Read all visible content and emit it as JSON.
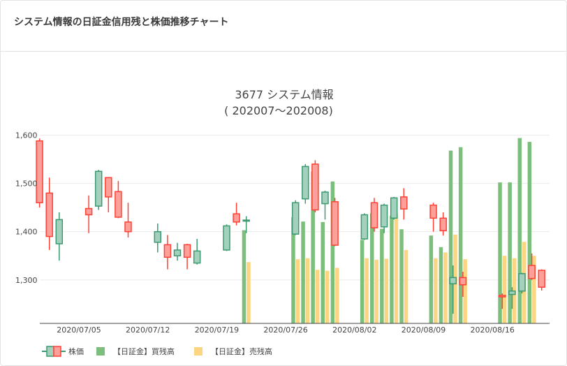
{
  "header": {
    "title": "システム情報の日証金信用残と株価推移チャート"
  },
  "chart_data": {
    "type": "candlestick+bar",
    "title": "3677 システム情報",
    "subtitle": "( 202007〜202008)",
    "ylim": [
      1210,
      1605
    ],
    "yticks": [
      {
        "v": 1300,
        "label": "1,300"
      },
      {
        "v": 1400,
        "label": "1,400"
      },
      {
        "v": 1500,
        "label": "1,500"
      },
      {
        "v": 1600,
        "label": "1,600"
      }
    ],
    "xticks": [
      {
        "label": "2020/07/05",
        "day": 0
      },
      {
        "label": "2020/07/12",
        "day": 7
      },
      {
        "label": "2020/07/19",
        "day": 14
      },
      {
        "label": "2020/07/26",
        "day": 21
      },
      {
        "label": "2020/08/02",
        "day": 28
      },
      {
        "label": "2020/08/09",
        "day": 35
      },
      {
        "label": "2020/08/16",
        "day": 42
      }
    ],
    "legend": {
      "position": "bottom-left",
      "items": [
        {
          "label": "株価",
          "kind": "candle"
        },
        {
          "label": "【日証金】買残高",
          "kind": "bar",
          "color": "#7cbf7c"
        },
        {
          "label": "【日証金】売残高",
          "kind": "bar",
          "color": "#fbd581"
        }
      ]
    },
    "colors": {
      "up": "#3d9970",
      "up_fill": "#a3d1bd",
      "down": "#ff4136",
      "down_fill": "#ff9f9a",
      "buy": "#7cbf7c",
      "sell": "#fbd581"
    },
    "candles": [
      {
        "date": "2020/07/01",
        "open": 1588,
        "high": 1593,
        "low": 1450,
        "close": 1460
      },
      {
        "date": "2020/07/02",
        "open": 1480,
        "high": 1512,
        "low": 1362,
        "close": 1390
      },
      {
        "date": "2020/07/03",
        "open": 1375,
        "high": 1440,
        "low": 1340,
        "close": 1425
      },
      {
        "date": "2020/07/06",
        "open": 1448,
        "high": 1475,
        "low": 1397,
        "close": 1435
      },
      {
        "date": "2020/07/07",
        "open": 1453,
        "high": 1528,
        "low": 1445,
        "close": 1525
      },
      {
        "date": "2020/07/08",
        "open": 1512,
        "high": 1512,
        "low": 1440,
        "close": 1472
      },
      {
        "date": "2020/07/09",
        "open": 1483,
        "high": 1505,
        "low": 1428,
        "close": 1430
      },
      {
        "date": "2020/07/10",
        "open": 1420,
        "high": 1460,
        "low": 1388,
        "close": 1400
      },
      {
        "date": "2020/07/13",
        "open": 1378,
        "high": 1417,
        "low": 1357,
        "close": 1400
      },
      {
        "date": "2020/07/14",
        "open": 1373,
        "high": 1393,
        "low": 1322,
        "close": 1347
      },
      {
        "date": "2020/07/15",
        "open": 1350,
        "high": 1377,
        "low": 1340,
        "close": 1362
      },
      {
        "date": "2020/07/16",
        "open": 1373,
        "high": 1375,
        "low": 1322,
        "close": 1347
      },
      {
        "date": "2020/07/17",
        "open": 1335,
        "high": 1385,
        "low": 1332,
        "close": 1360
      },
      {
        "date": "2020/07/20",
        "open": 1362,
        "high": 1415,
        "low": 1360,
        "close": 1412
      },
      {
        "date": "2020/07/21",
        "open": 1437,
        "high": 1460,
        "low": 1413,
        "close": 1420
      },
      {
        "date": "2020/07/22",
        "open": 1422,
        "high": 1432,
        "low": 1397,
        "close": 1424
      },
      {
        "date": "2020/07/27",
        "open": 1395,
        "high": 1465,
        "low": 1393,
        "close": 1460
      },
      {
        "date": "2020/07/28",
        "open": 1468,
        "high": 1540,
        "low": 1458,
        "close": 1535
      },
      {
        "date": "2020/07/29",
        "open": 1540,
        "high": 1548,
        "low": 1440,
        "close": 1445
      },
      {
        "date": "2020/07/30",
        "open": 1458,
        "high": 1485,
        "low": 1425,
        "close": 1482
      },
      {
        "date": "2020/07/31",
        "open": 1462,
        "high": 1470,
        "low": 1370,
        "close": 1372
      },
      {
        "date": "2020/08/03",
        "open": 1385,
        "high": 1438,
        "low": 1383,
        "close": 1435
      },
      {
        "date": "2020/08/04",
        "open": 1460,
        "high": 1470,
        "low": 1400,
        "close": 1408
      },
      {
        "date": "2020/08/05",
        "open": 1410,
        "high": 1458,
        "low": 1397,
        "close": 1455
      },
      {
        "date": "2020/08/06",
        "open": 1428,
        "high": 1472,
        "low": 1425,
        "close": 1470
      },
      {
        "date": "2020/08/07",
        "open": 1472,
        "high": 1490,
        "low": 1425,
        "close": 1447
      },
      {
        "date": "2020/08/10",
        "open": 1455,
        "high": 1460,
        "low": 1400,
        "close": 1428
      },
      {
        "date": "2020/08/11",
        "open": 1428,
        "high": 1440,
        "low": 1392,
        "close": 1402
      },
      {
        "date": "2020/08/12",
        "open": 1292,
        "high": 1330,
        "low": 1230,
        "close": 1305
      },
      {
        "date": "2020/08/13",
        "open": 1305,
        "high": 1317,
        "low": 1265,
        "close": 1290
      },
      {
        "date": "2020/08/17",
        "open": 1268,
        "high": 1272,
        "low": 1240,
        "close": 1265
      },
      {
        "date": "2020/08/18",
        "open": 1270,
        "high": 1285,
        "low": 1240,
        "close": 1277
      },
      {
        "date": "2020/08/19",
        "open": 1277,
        "high": 1315,
        "low": 1272,
        "close": 1313
      },
      {
        "date": "2020/08/20",
        "open": 1330,
        "high": 1355,
        "low": 1300,
        "close": 1303
      },
      {
        "date": "2020/08/21",
        "open": 1320,
        "high": 1322,
        "low": 1278,
        "close": 1285
      }
    ],
    "bars": [
      {
        "date": "2020/07/22",
        "buy": 1403,
        "sell": 1337
      },
      {
        "date": "2020/07/27",
        "buy": 1430,
        "sell": 1343
      },
      {
        "date": "2020/07/28",
        "buy": 1421,
        "sell": 1345
      },
      {
        "date": "2020/07/29",
        "buy": 1525,
        "sell": 1321
      },
      {
        "date": "2020/07/30",
        "buy": 1420,
        "sell": 1319
      },
      {
        "date": "2020/07/31",
        "buy": 1504,
        "sell": 1325
      },
      {
        "date": "2020/08/03",
        "buy": 1383,
        "sell": 1345
      },
      {
        "date": "2020/08/04",
        "buy": 1438,
        "sell": 1342
      },
      {
        "date": "2020/08/05",
        "buy": 1406,
        "sell": 1344
      },
      {
        "date": "2020/08/06",
        "buy": 1433,
        "sell": 1436
      },
      {
        "date": "2020/08/07",
        "buy": 1405,
        "sell": 1362
      },
      {
        "date": "2020/08/10",
        "buy": 1392,
        "sell": 1345
      },
      {
        "date": "2020/08/11",
        "buy": 1368,
        "sell": 1357
      },
      {
        "date": "2020/08/12",
        "buy": 1568,
        "sell": 1394
      },
      {
        "date": "2020/08/13",
        "buy": 1575,
        "sell": 1343
      },
      {
        "date": "2020/08/17",
        "buy": 1502,
        "sell": 1350
      },
      {
        "date": "2020/08/18",
        "buy": 1502,
        "sell": 1345
      },
      {
        "date": "2020/08/19",
        "buy": 1594,
        "sell": 1379
      },
      {
        "date": "2020/08/20",
        "buy": 1586,
        "sell": 1350
      }
    ]
  }
}
